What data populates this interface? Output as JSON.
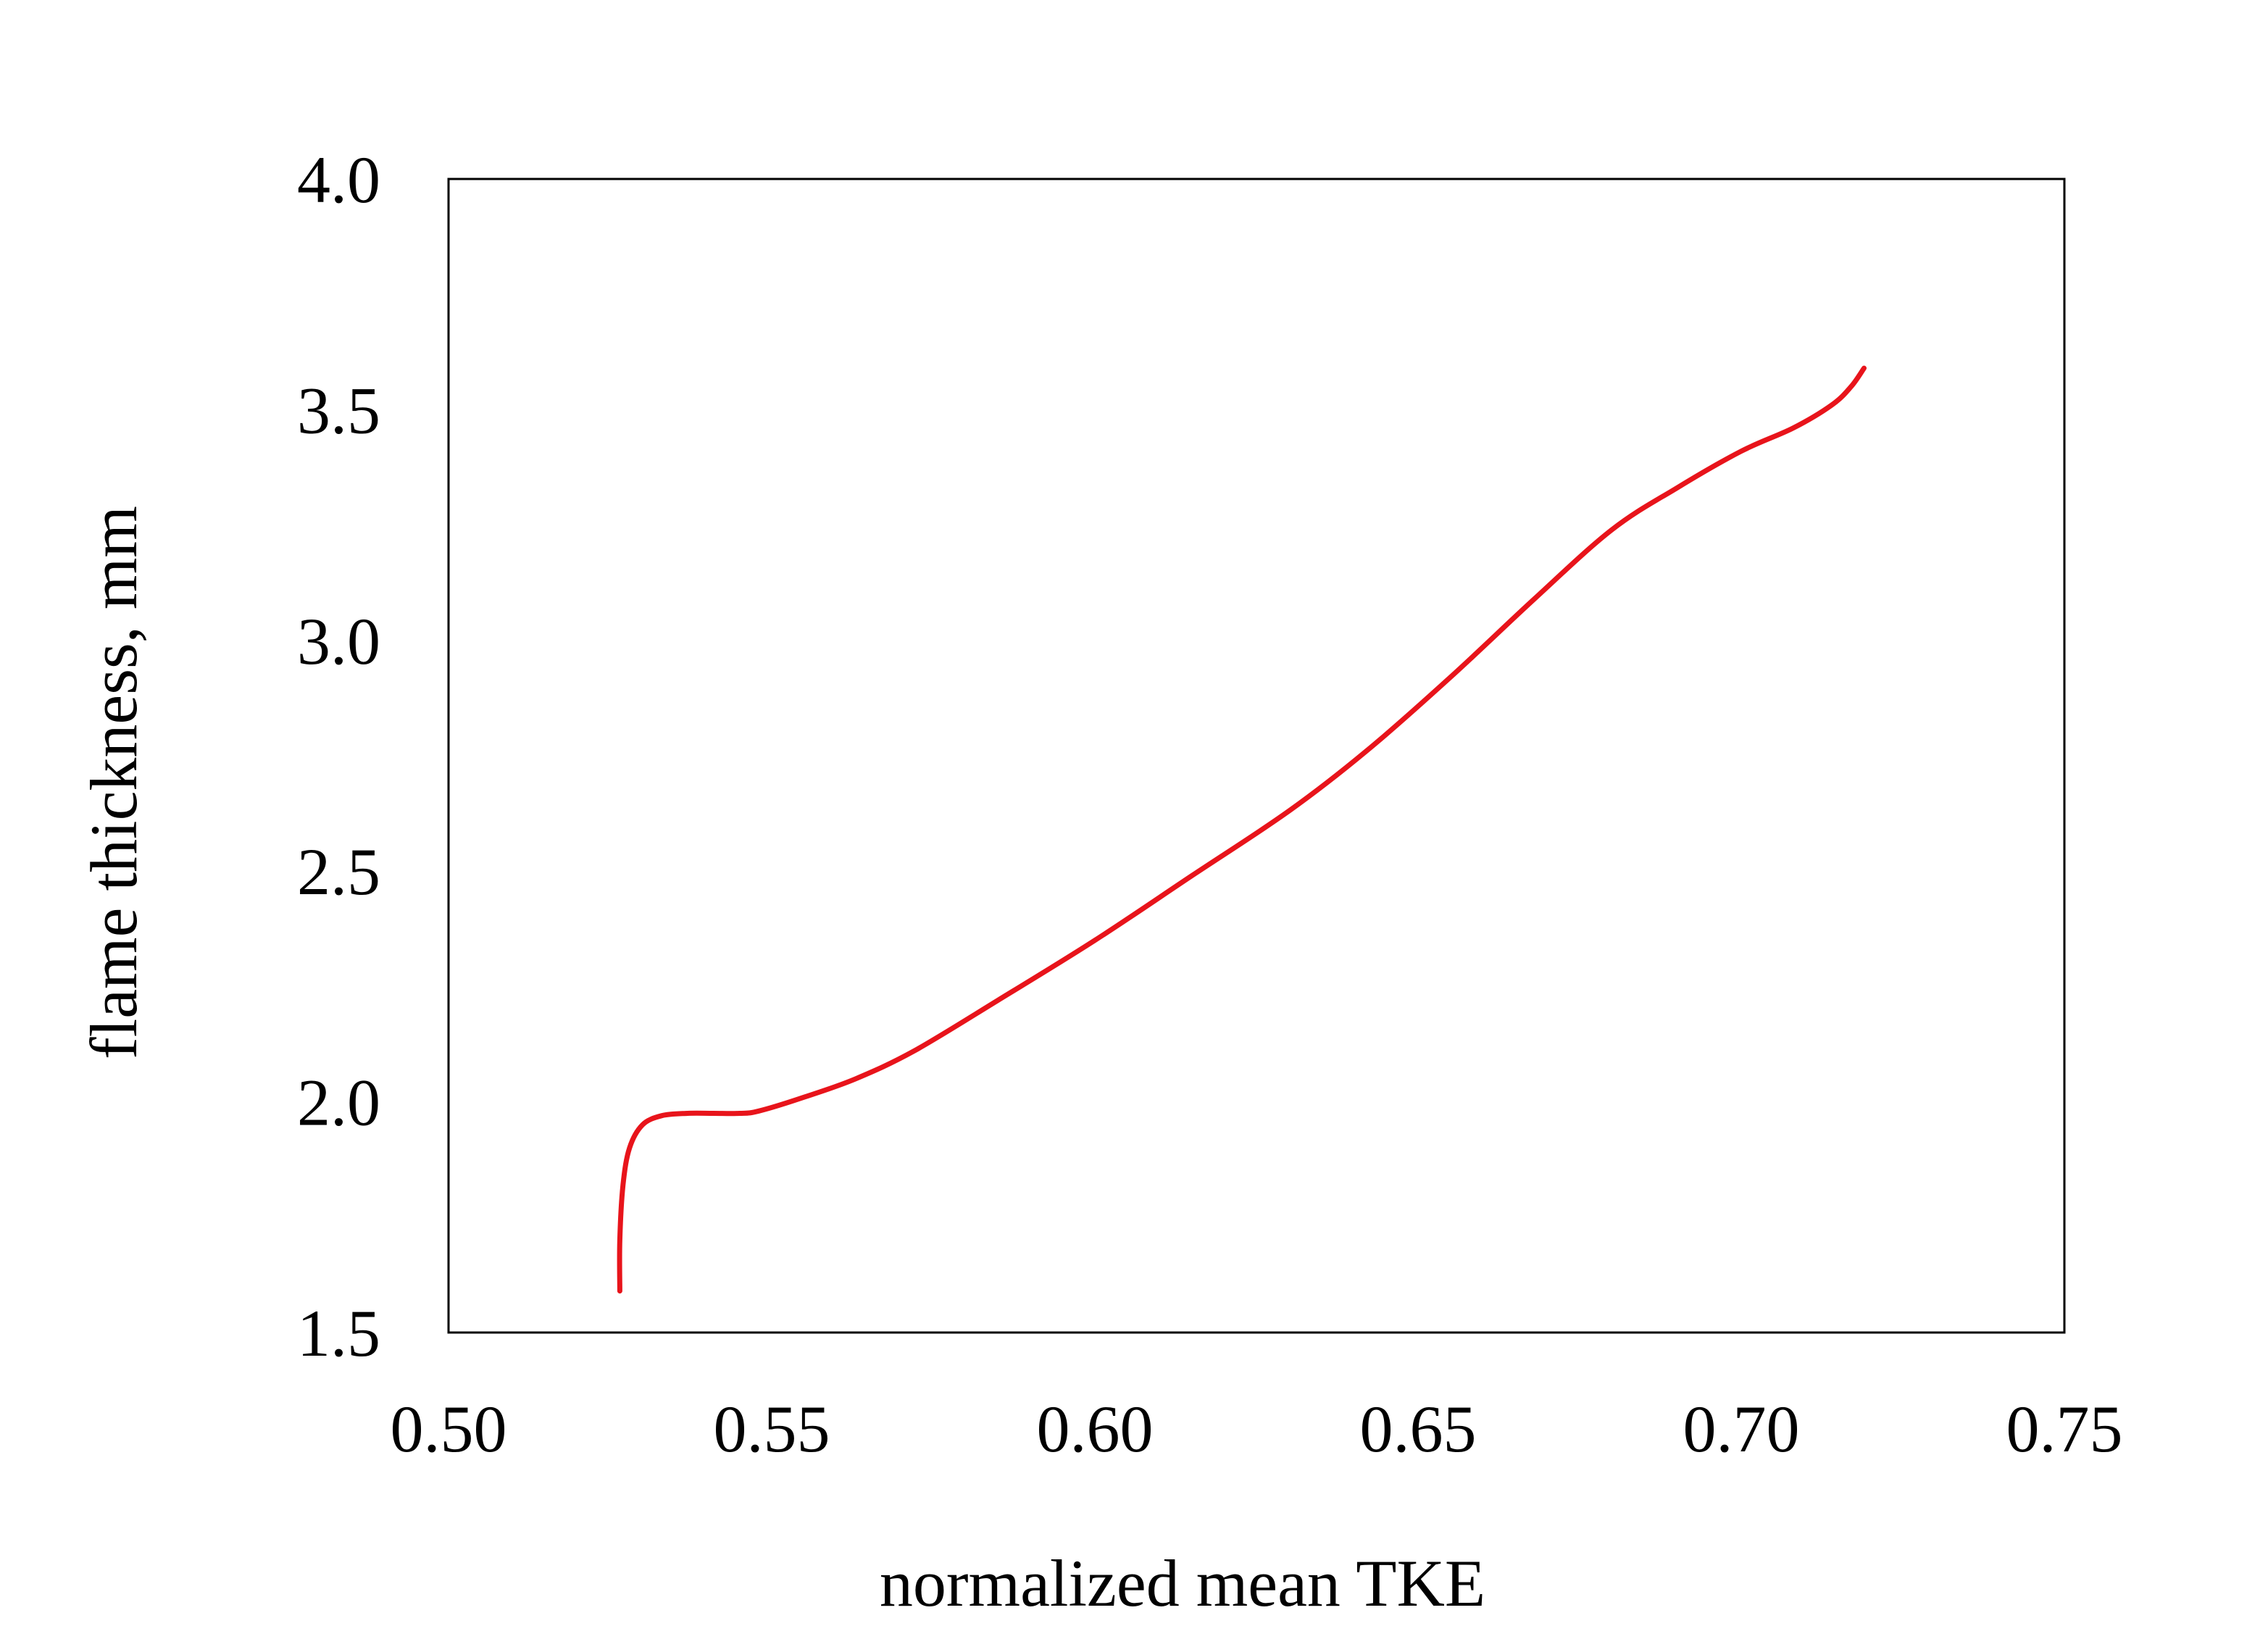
{
  "chart_data": {
    "type": "line",
    "xlabel": "normalized mean TKE",
    "ylabel": "flame thickness, mm",
    "xlim": [
      0.5,
      0.75
    ],
    "ylim": [
      1.5,
      4.0
    ],
    "x_ticks": [
      "0.50",
      "0.55",
      "0.60",
      "0.65",
      "0.70",
      "0.75"
    ],
    "y_ticks": [
      "1.5",
      "2.0",
      "2.5",
      "3.0",
      "3.5",
      "4.0"
    ],
    "grid": false,
    "legend": "none",
    "series": [
      {
        "color": "#e8141b",
        "x": [
          0.5265,
          0.5265,
          0.527,
          0.528,
          0.53,
          0.533,
          0.537,
          0.541,
          0.545,
          0.548,
          0.555,
          0.563,
          0.572,
          0.585,
          0.6,
          0.615,
          0.63,
          0.642,
          0.655,
          0.668,
          0.68,
          0.69,
          0.7,
          0.708,
          0.714,
          0.717,
          0.719
        ],
        "y": [
          1.59,
          1.7,
          1.82,
          1.9,
          1.95,
          1.97,
          1.975,
          1.975,
          1.975,
          1.98,
          2.01,
          2.05,
          2.11,
          2.22,
          2.35,
          2.49,
          2.63,
          2.76,
          2.92,
          3.09,
          3.24,
          3.33,
          3.41,
          3.46,
          3.51,
          3.55,
          3.59
        ]
      }
    ]
  }
}
